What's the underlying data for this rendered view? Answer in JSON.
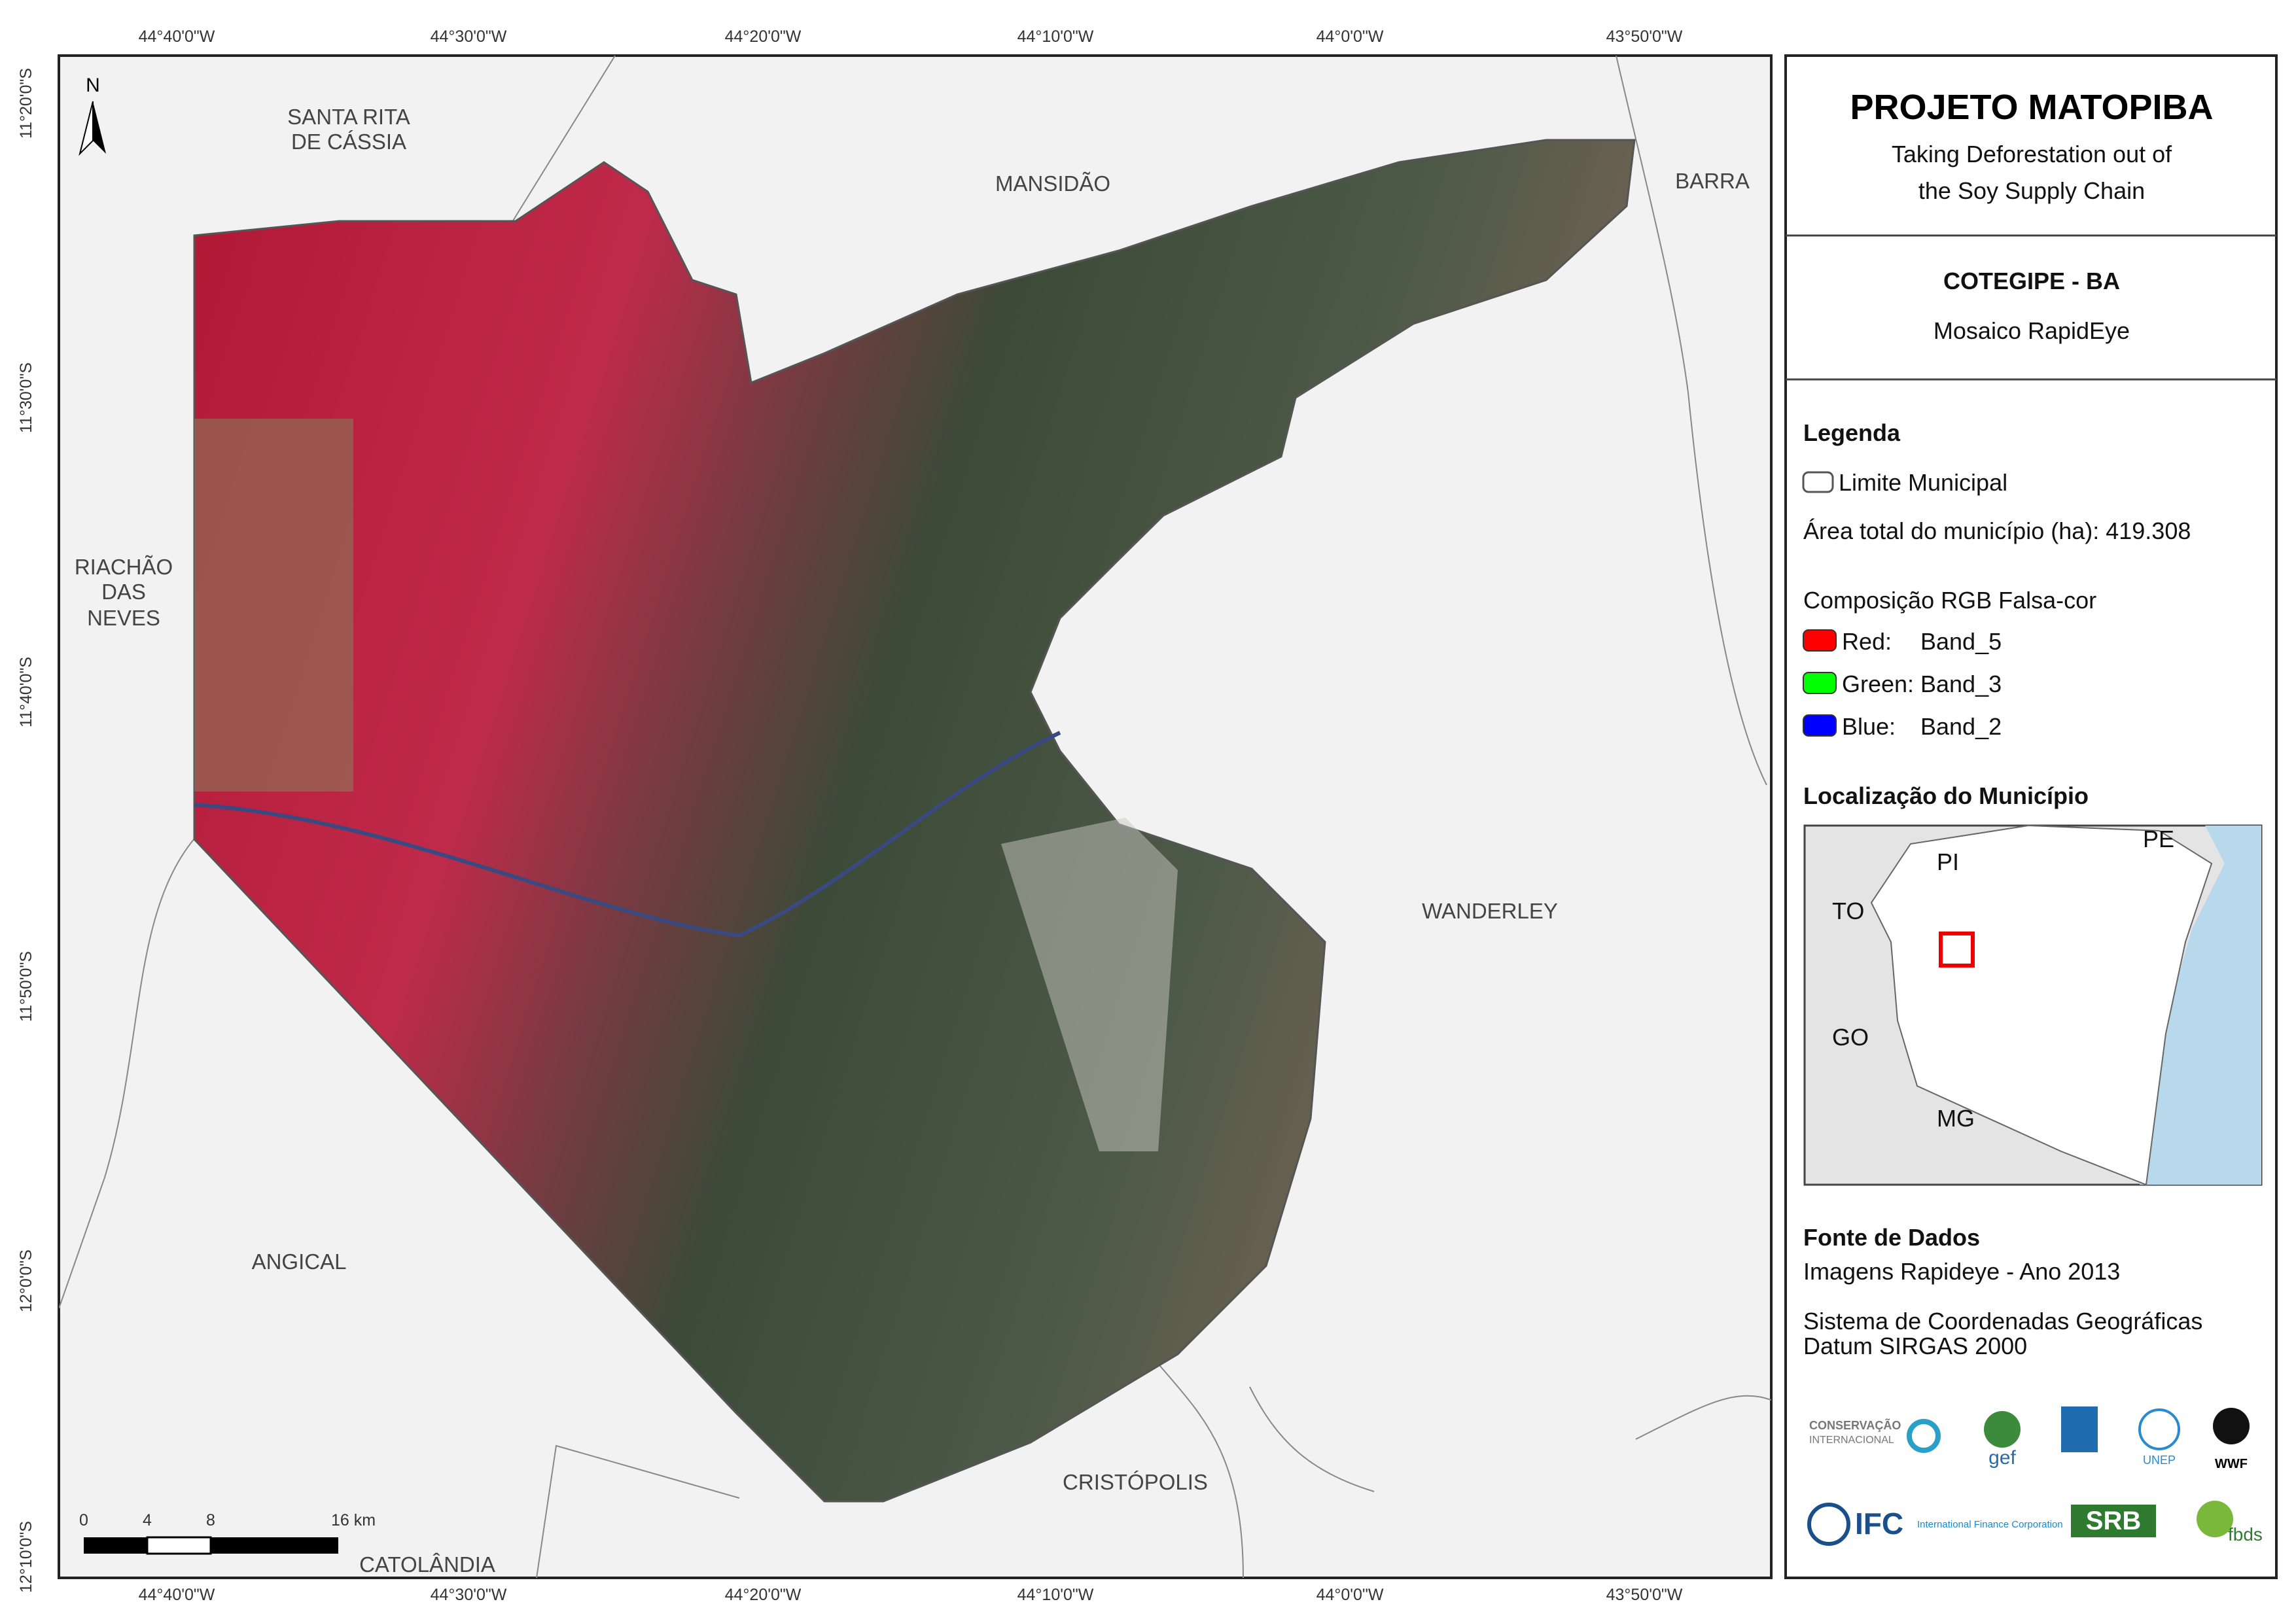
{
  "map": {
    "lon_labels": [
      "44°40'0\"W",
      "44°30'0\"W",
      "44°20'0\"W",
      "44°10'0\"W",
      "44°0'0\"W",
      "43°50'0\"W"
    ],
    "lat_labels": [
      "11°20'0\"S",
      "11°30'0\"S",
      "11°40'0\"S",
      "11°50'0\"S",
      "12°0'0\"S",
      "12°10'0\"S"
    ],
    "north": "N",
    "places": {
      "santa_rita": [
        "SANTA RITA",
        "DE CÁSSIA"
      ],
      "mansidao": "MANSIDÃO",
      "barra": "BARRA",
      "riachao": [
        "RIACHÃO",
        "DAS",
        "NEVES"
      ],
      "wanderley": "WANDERLEY",
      "angical": "ANGICAL",
      "cristopolis": "CRISTÓPOLIS",
      "catolandia": "CATOLÂNDIA"
    },
    "scale_labels": [
      "0",
      "4",
      "8",
      "16 km"
    ]
  },
  "panel": {
    "title": "PROJETO MATOPIBA",
    "subtitle": [
      "Taking Deforestation out of",
      "the Soy Supply Chain"
    ],
    "municipality": "COTEGIPE - BA",
    "product": "Mosaico RapidEye",
    "legend": {
      "heading": "Legenda",
      "limit": "Limite Municipal",
      "area": "Área total do município (ha): 419.308",
      "composition": "Composição RGB Falsa-cor",
      "bands": [
        {
          "channel": "Red:",
          "band": "Band_5"
        },
        {
          "channel": "Green:",
          "band": "Band_3"
        },
        {
          "channel": "Blue:",
          "band": "Band_2"
        }
      ]
    },
    "location": {
      "heading": "Localização do Município",
      "states": [
        "PI",
        "PE",
        "TO",
        "GO",
        "MG"
      ]
    },
    "sources": {
      "heading": "Fonte de Dados",
      "lines": [
        "Imagens Rapideye - Ano 2013",
        "Sistema de Coordenadas Geográficas",
        "Datum SIRGAS 2000"
      ]
    },
    "logos": [
      "CONSERVAÇÃO",
      "INTERNACIONAL",
      "gef",
      "UNEP",
      "WWF",
      "IFC",
      "International Finance Corporation",
      "SRB",
      "fbds"
    ]
  }
}
